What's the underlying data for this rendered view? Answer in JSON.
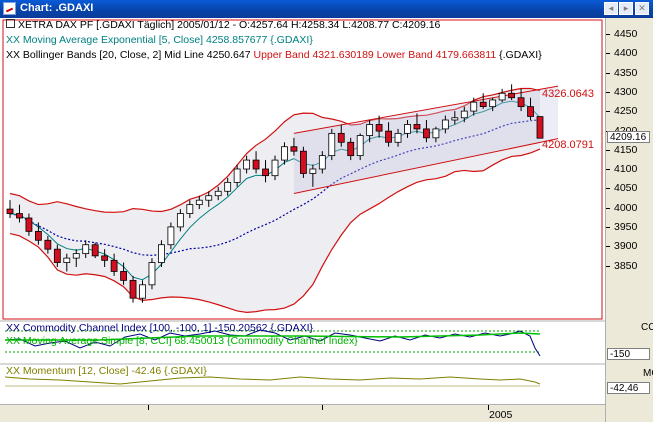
{
  "window": {
    "title": "Chart: .GDAXI",
    "controls": [
      "◂",
      "▸",
      "✕"
    ]
  },
  "legend": {
    "line1": "XETRA DAX PF [.GDAXI  Täglich] 2005/01/12 - O:4257.64 H:4258.34 L:4208.77 C:4209.16",
    "line2": "XX Moving Average Exponential [5, Close] 4258.857677 {.GDAXI}",
    "line3a": "XX Bollinger Bands [20, Close, 2] Mid Line 4250.647 ",
    "line3b": "Upper Band 4321.630189 Lower Band 4179.663811",
    "line3c": " {.GDAXI}"
  },
  "channel_labels": {
    "upper": "4326.0643",
    "lower": "4208.0791"
  },
  "cci": {
    "label1": "XX Commodity Channel Index [100, -100, 1] -150.20562 {.GDAXI}",
    "label2": "XX Moving Average Simple [8, CCI] 68.450013 {Commodity Channel Index}",
    "panel_label": "CC",
    "value": "-150"
  },
  "momentum": {
    "label": "XX Momentum [12, Close] -42.46 {.GDAXI}",
    "panel_label": "MOM",
    "value": "-42,46"
  },
  "price_axis": {
    "ticks": [
      "4450",
      "4400",
      "4350",
      "4300",
      "4250",
      "4200",
      "4150",
      "4100",
      "4050",
      "4000",
      "3950",
      "3900",
      "3850"
    ],
    "current": "4209.16"
  },
  "time_axis": {
    "label": "2005"
  },
  "colors": {
    "title_bar": "#0842a8",
    "bollinger": "#d01010",
    "ema": "#008080",
    "cci": "#000080",
    "cci_ma": "#00c000",
    "momentum": "#808000",
    "channel": "#d01010",
    "mid_line": "#0000a0",
    "up_candle": "#ffffff",
    "down_candle": "#d01020"
  },
  "chart_data": {
    "type": "candlestick",
    "title": "XETRA DAX PF [.GDAXI  Täglich]",
    "y_range": [
      3810,
      4470
    ],
    "candles": [
      {
        "o": 4050,
        "h": 4070,
        "l": 4030,
        "c": 4040
      },
      {
        "o": 4040,
        "h": 4060,
        "l": 4020,
        "c": 4030
      },
      {
        "o": 4030,
        "h": 4040,
        "l": 3990,
        "c": 4000
      },
      {
        "o": 4000,
        "h": 4020,
        "l": 3970,
        "c": 3980
      },
      {
        "o": 3980,
        "h": 3990,
        "l": 3950,
        "c": 3960
      },
      {
        "o": 3960,
        "h": 3970,
        "l": 3920,
        "c": 3930
      },
      {
        "o": 3930,
        "h": 3950,
        "l": 3910,
        "c": 3940
      },
      {
        "o": 3940,
        "h": 3960,
        "l": 3920,
        "c": 3950
      },
      {
        "o": 3950,
        "h": 3980,
        "l": 3940,
        "c": 3970
      },
      {
        "o": 3970,
        "h": 3975,
        "l": 3940,
        "c": 3945
      },
      {
        "o": 3945,
        "h": 3960,
        "l": 3920,
        "c": 3935
      },
      {
        "o": 3935,
        "h": 3950,
        "l": 3900,
        "c": 3910
      },
      {
        "o": 3910,
        "h": 3930,
        "l": 3880,
        "c": 3890
      },
      {
        "o": 3890,
        "h": 3900,
        "l": 3840,
        "c": 3850
      },
      {
        "o": 3850,
        "h": 3890,
        "l": 3840,
        "c": 3880
      },
      {
        "o": 3880,
        "h": 3940,
        "l": 3870,
        "c": 3930
      },
      {
        "o": 3930,
        "h": 3980,
        "l": 3920,
        "c": 3970
      },
      {
        "o": 3970,
        "h": 4020,
        "l": 3960,
        "c": 4010
      },
      {
        "o": 4010,
        "h": 4050,
        "l": 4000,
        "c": 4040
      },
      {
        "o": 4040,
        "h": 4070,
        "l": 4030,
        "c": 4060
      },
      {
        "o": 4060,
        "h": 4080,
        "l": 4050,
        "c": 4070
      },
      {
        "o": 4070,
        "h": 4090,
        "l": 4055,
        "c": 4080
      },
      {
        "o": 4080,
        "h": 4100,
        "l": 4070,
        "c": 4090
      },
      {
        "o": 4090,
        "h": 4120,
        "l": 4080,
        "c": 4110
      },
      {
        "o": 4110,
        "h": 4150,
        "l": 4100,
        "c": 4140
      },
      {
        "o": 4140,
        "h": 4170,
        "l": 4130,
        "c": 4160
      },
      {
        "o": 4160,
        "h": 4180,
        "l": 4130,
        "c": 4140
      },
      {
        "o": 4140,
        "h": 4160,
        "l": 4110,
        "c": 4125
      },
      {
        "o": 4125,
        "h": 4170,
        "l": 4115,
        "c": 4160
      },
      {
        "o": 4160,
        "h": 4200,
        "l": 4150,
        "c": 4190
      },
      {
        "o": 4190,
        "h": 4210,
        "l": 4170,
        "c": 4180
      },
      {
        "o": 4180,
        "h": 4190,
        "l": 4120,
        "c": 4130
      },
      {
        "o": 4130,
        "h": 4150,
        "l": 4100,
        "c": 4140
      },
      {
        "o": 4140,
        "h": 4180,
        "l": 4130,
        "c": 4170
      },
      {
        "o": 4170,
        "h": 4230,
        "l": 4160,
        "c": 4220
      },
      {
        "o": 4220,
        "h": 4240,
        "l": 4190,
        "c": 4200
      },
      {
        "o": 4200,
        "h": 4210,
        "l": 4160,
        "c": 4170
      },
      {
        "o": 4170,
        "h": 4220,
        "l": 4160,
        "c": 4215
      },
      {
        "o": 4215,
        "h": 4250,
        "l": 4200,
        "c": 4240
      },
      {
        "o": 4240,
        "h": 4260,
        "l": 4210,
        "c": 4225
      },
      {
        "o": 4225,
        "h": 4245,
        "l": 4190,
        "c": 4200
      },
      {
        "o": 4200,
        "h": 4230,
        "l": 4190,
        "c": 4220
      },
      {
        "o": 4220,
        "h": 4250,
        "l": 4210,
        "c": 4240
      },
      {
        "o": 4240,
        "h": 4265,
        "l": 4220,
        "c": 4230
      },
      {
        "o": 4230,
        "h": 4250,
        "l": 4200,
        "c": 4210
      },
      {
        "o": 4210,
        "h": 4235,
        "l": 4200,
        "c": 4230
      },
      {
        "o": 4230,
        "h": 4260,
        "l": 4220,
        "c": 4250
      },
      {
        "o": 4250,
        "h": 4270,
        "l": 4240,
        "c": 4255
      },
      {
        "o": 4255,
        "h": 4280,
        "l": 4245,
        "c": 4270
      },
      {
        "o": 4270,
        "h": 4300,
        "l": 4260,
        "c": 4290
      },
      {
        "o": 4290,
        "h": 4310,
        "l": 4275,
        "c": 4280
      },
      {
        "o": 4280,
        "h": 4300,
        "l": 4270,
        "c": 4295
      },
      {
        "o": 4295,
        "h": 4320,
        "l": 4290,
        "c": 4310
      },
      {
        "o": 4310,
        "h": 4330,
        "l": 4295,
        "c": 4300
      },
      {
        "o": 4300,
        "h": 4320,
        "l": 4270,
        "c": 4280
      },
      {
        "o": 4280,
        "h": 4300,
        "l": 4250,
        "c": 4258
      },
      {
        "o": 4257.64,
        "h": 4258.34,
        "l": 4208.77,
        "c": 4209.16
      }
    ]
  }
}
